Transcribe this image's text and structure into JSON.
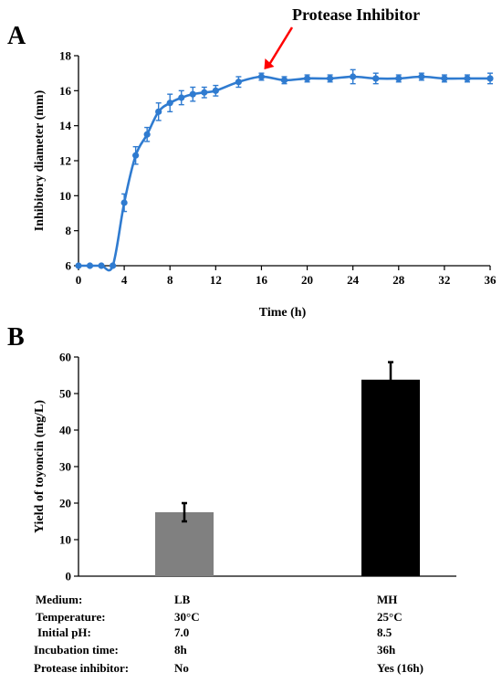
{
  "panel_a": {
    "letter": "A",
    "annotation": "Protease Inhibitor",
    "annotation_color": "#ff0000",
    "line_color": "#2f7bd0"
  },
  "panel_b": {
    "letter": "B",
    "conditions": {
      "labels": [
        "Medium:",
        "Temperature:",
        "Initial pH:",
        "Incubation time:",
        "Protease inhibitor:"
      ],
      "lb": [
        "LB",
        "30°C",
        "7.0",
        "8h",
        "No"
      ],
      "mh": [
        "MH",
        "25°C",
        "8.5",
        "36h",
        "Yes (16h)"
      ]
    }
  },
  "chart_data": [
    {
      "type": "line",
      "xlabel": "Time (h)",
      "ylabel": "Inhibitory diameter (mm)",
      "xlim": [
        0,
        36
      ],
      "ylim": [
        6,
        18
      ],
      "xticks": [
        0,
        4,
        8,
        12,
        16,
        20,
        24,
        28,
        32,
        36
      ],
      "yticks": [
        6,
        8,
        10,
        12,
        14,
        16,
        18
      ],
      "series": [
        {
          "x": [
            0,
            1,
            2,
            3,
            4,
            5,
            6,
            7,
            8,
            9,
            10,
            11,
            12,
            14,
            16,
            18,
            20,
            22,
            24,
            26,
            28,
            30,
            32,
            34,
            36
          ],
          "y": [
            6,
            6,
            6,
            6,
            9.6,
            12.3,
            13.5,
            14.8,
            15.3,
            15.6,
            15.8,
            15.9,
            16.0,
            16.5,
            16.8,
            16.6,
            16.7,
            16.7,
            16.8,
            16.7,
            16.7,
            16.8,
            16.7,
            16.7,
            16.7
          ],
          "err": [
            0,
            0,
            0,
            0,
            0.5,
            0.5,
            0.4,
            0.5,
            0.5,
            0.4,
            0.4,
            0.3,
            0.3,
            0.3,
            0.2,
            0.2,
            0.2,
            0.2,
            0.4,
            0.3,
            0.2,
            0.2,
            0.2,
            0.2,
            0.3
          ]
        }
      ]
    },
    {
      "type": "bar",
      "ylabel": "Yield of toyoncin (mg/L)",
      "ylim": [
        0,
        60
      ],
      "yticks": [
        0,
        10,
        20,
        30,
        40,
        50,
        60
      ],
      "categories": [
        "LB",
        "MH"
      ],
      "values": [
        17.5,
        53.8
      ],
      "errors": [
        2.5,
        4.8
      ],
      "colors": [
        "#808080",
        "#000000"
      ]
    }
  ]
}
